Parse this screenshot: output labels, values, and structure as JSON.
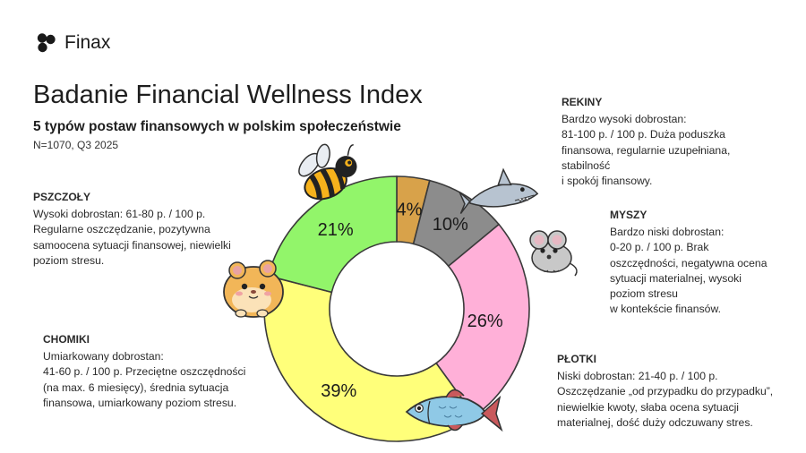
{
  "brand": {
    "name": "Finax"
  },
  "header": {
    "title": "Badanie Financial Wellness Index",
    "subtitle": "5 typów postaw finansowych w polskim społeczeństwie",
    "sample": "N=1070, Q3 2025"
  },
  "chart_data": {
    "type": "pie",
    "donut": true,
    "start_angle_deg": 90,
    "direction": "clockwise",
    "slices": [
      {
        "key": "rekiny",
        "label": "4%",
        "value": 4,
        "color": "#d8a24a",
        "icon": "shark-icon"
      },
      {
        "key": "myszy",
        "label": "10%",
        "value": 10,
        "color": "#8c8c8c",
        "icon": "mouse-icon"
      },
      {
        "key": "plotki",
        "label": "26%",
        "value": 26,
        "color": "#ffb0d8",
        "icon": "fish-icon"
      },
      {
        "key": "chomiki",
        "label": "39%",
        "value": 39,
        "color": "#ffff7a",
        "icon": "hamster-icon"
      },
      {
        "key": "pszczoly",
        "label": "21%",
        "value": 21,
        "color": "#92f56a",
        "icon": "bee-icon"
      }
    ]
  },
  "segments": {
    "rekiny": {
      "name": "REKINY",
      "text": "Bardzo wysoki dobrostan:\n81-100 p. / 100 p. Duża poduszka\nfinansowa, regularnie uzupełniana,\nstabilność\ni spokój finansowy."
    },
    "myszy": {
      "name": "MYSZY",
      "text": "Bardzo niski dobrostan:\n0-20 p. / 100 p. Brak\noszczędności, negatywna ocena\nsytuacji materialnej, wysoki\npoziom stresu\nw kontekście finansów."
    },
    "plotki": {
      "name": "PŁOTKI",
      "text": "Niski dobrostan: 21-40 p. / 100 p.\nOszczędzanie „od przypadku do przypadku”,\nniewielkie kwoty, słaba ocena sytuacji\nmaterialnej, dość duży odczuwany stres."
    },
    "chomiki": {
      "name": "CHOMIKI",
      "text": "Umiarkowany dobrostan:\n41-60 p. / 100 p. Przeciętne oszczędności\n(na max. 6 miesięcy), średnia sytuacja\nfinansowa, umiarkowany poziom stresu."
    },
    "pszczoly": {
      "name": "PSZCZOŁY",
      "text": "Wysoki dobrostan: 61-80 p. / 100 p.\nRegularne oszczędzanie, pozytywna\nsamoocena sytuacji finansowej, niewielki\npoziom stresu."
    }
  }
}
